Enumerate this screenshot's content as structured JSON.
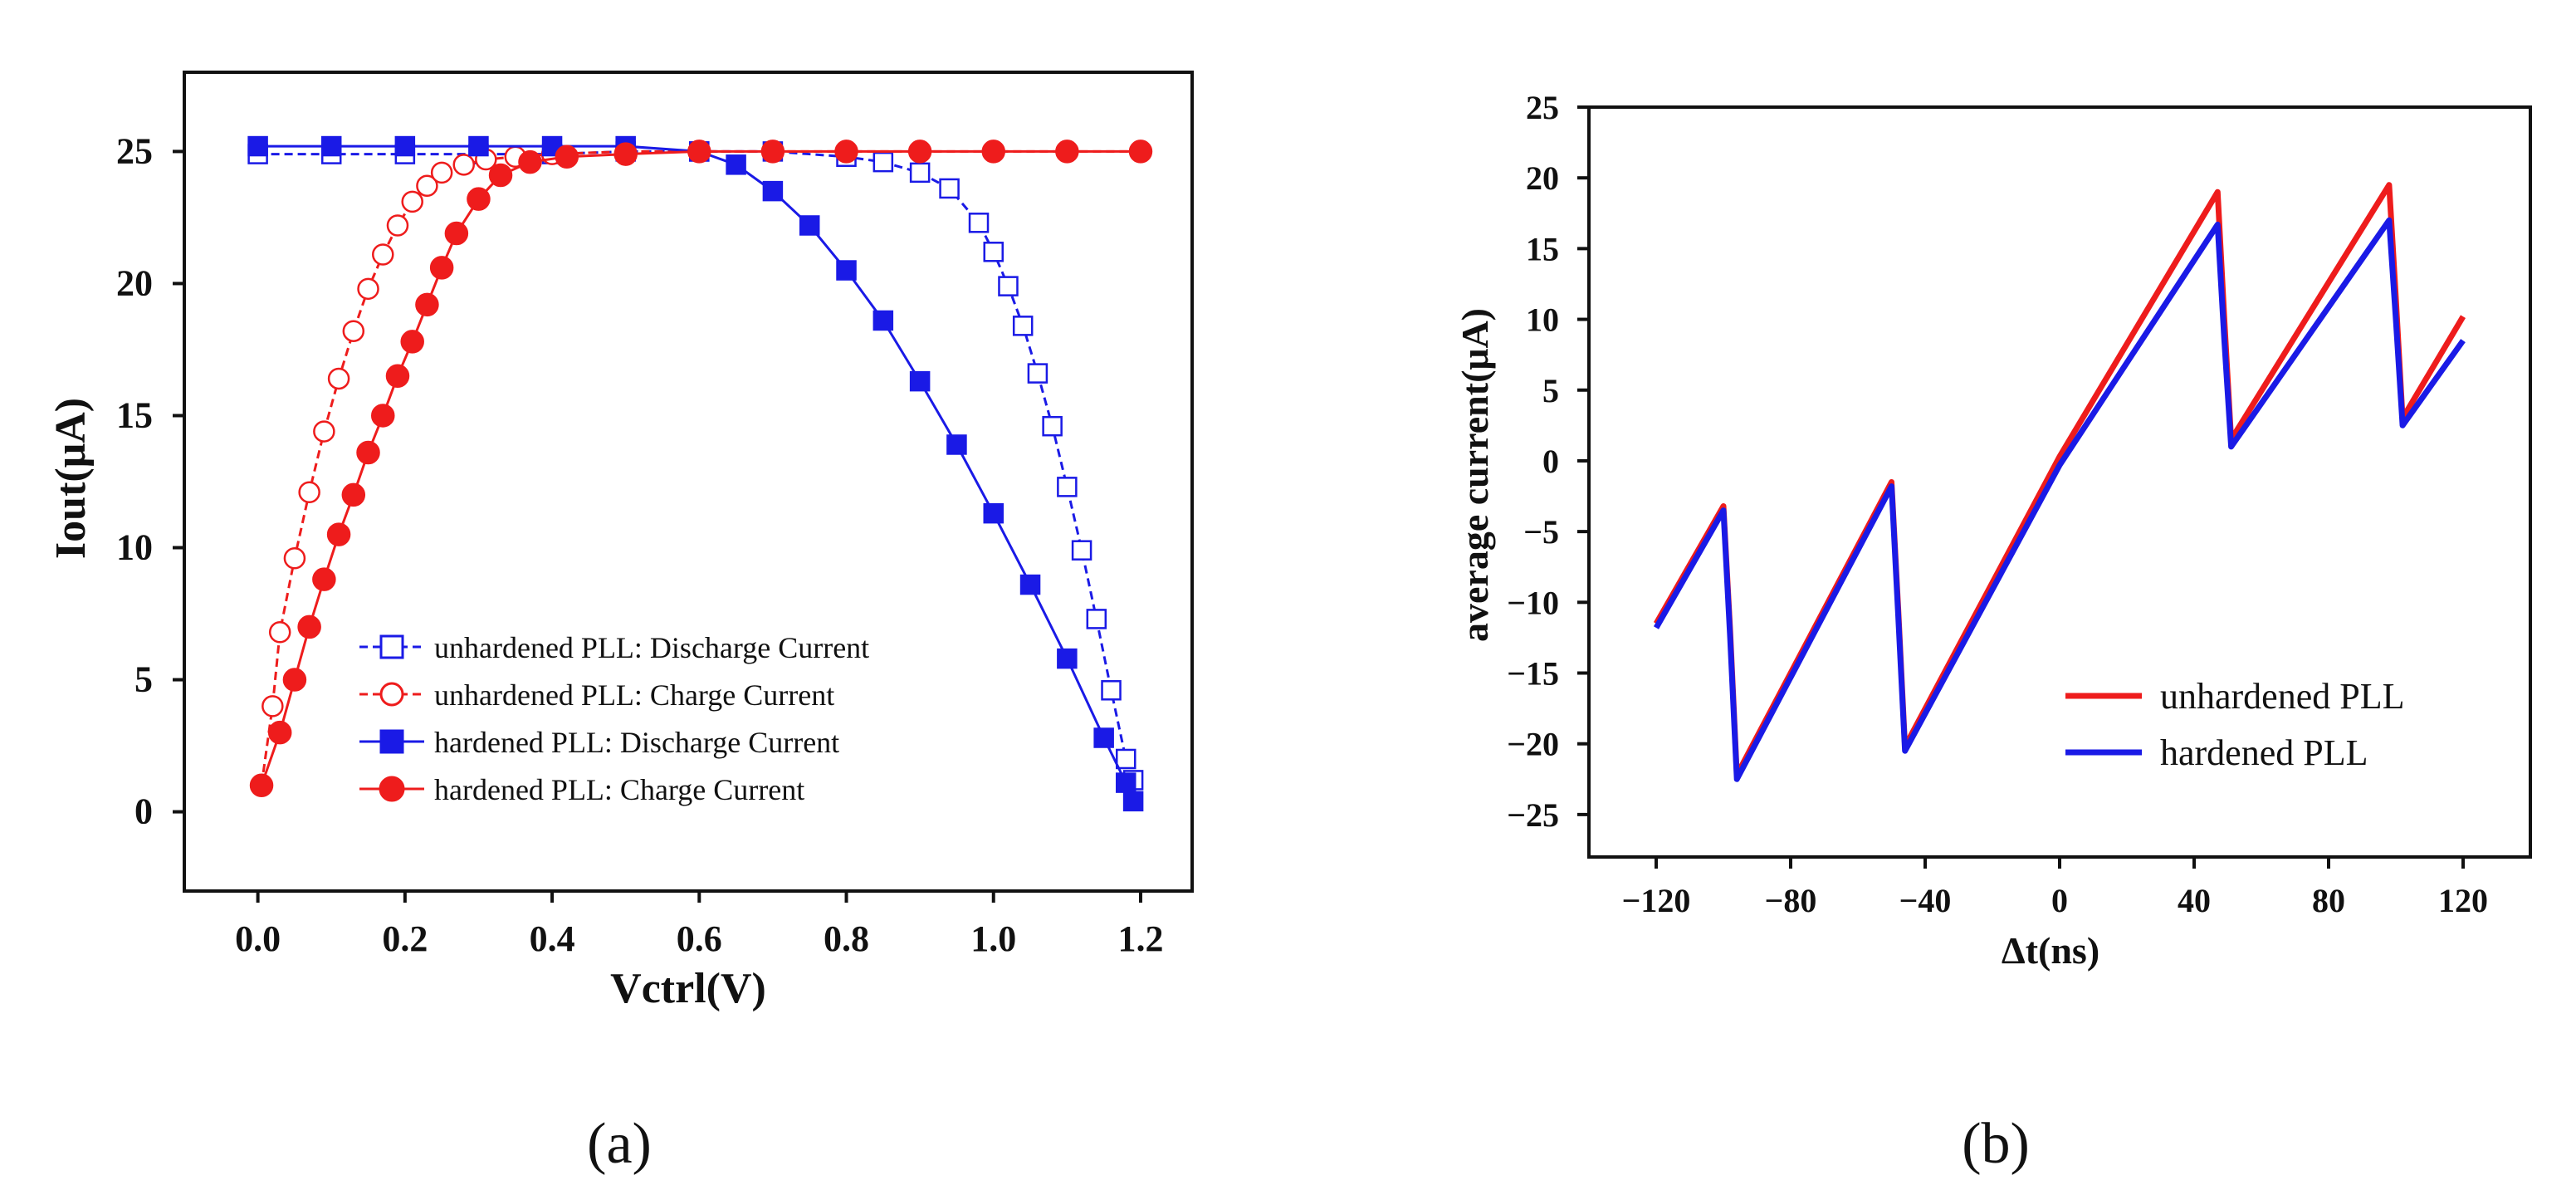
{
  "panel_labels": {
    "a": "(a)",
    "b": "(b)"
  },
  "colors": {
    "red": "#ee1c1c",
    "blue": "#1a1ae6",
    "axis": "#111111"
  },
  "chart_data": [
    {
      "id": "a",
      "type": "line",
      "title": "",
      "xlabel": "Vctrl(V)",
      "ylabel": "Iout(μA)",
      "xlim": [
        -0.1,
        1.27
      ],
      "ylim": [
        -3,
        28
      ],
      "xticks": [
        0.0,
        0.2,
        0.4,
        0.6,
        0.8,
        1.0,
        1.2
      ],
      "xtick_labels": [
        "0.0",
        "0.2",
        "0.4",
        "0.6",
        "0.8",
        "1.0",
        "1.2"
      ],
      "yticks": [
        0,
        5,
        10,
        15,
        20,
        25
      ],
      "ytick_labels": [
        "0",
        "5",
        "10",
        "15",
        "20",
        "25"
      ],
      "grid": false,
      "legend_position": "lower-center",
      "series": [
        {
          "name": "unhardened PLL: Discharge Current",
          "color": "#1a1ae6",
          "marker": "square-open",
          "x": [
            0.0,
            0.1,
            0.2,
            0.3,
            0.4,
            0.5,
            0.6,
            0.7,
            0.8,
            0.85,
            0.9,
            0.94,
            0.98,
            1.0,
            1.02,
            1.04,
            1.06,
            1.08,
            1.1,
            1.12,
            1.14,
            1.16,
            1.18,
            1.19
          ],
          "y": [
            24.9,
            24.9,
            24.9,
            24.9,
            24.9,
            25.0,
            25.0,
            25.0,
            24.8,
            24.6,
            24.2,
            23.6,
            22.3,
            21.2,
            19.9,
            18.4,
            16.6,
            14.6,
            12.3,
            9.9,
            7.3,
            4.6,
            2.0,
            1.2
          ]
        },
        {
          "name": "unhardened PLL: Charge Current",
          "color": "#ee1c1c",
          "marker": "circle-open",
          "x": [
            0.005,
            0.02,
            0.03,
            0.05,
            0.07,
            0.09,
            0.11,
            0.13,
            0.15,
            0.17,
            0.19,
            0.21,
            0.23,
            0.25,
            0.28,
            0.31,
            0.35,
            0.4,
            0.5,
            0.6,
            0.7,
            0.8,
            0.9,
            1.0,
            1.1,
            1.2
          ],
          "y": [
            1.0,
            4.0,
            6.8,
            9.6,
            12.1,
            14.4,
            16.4,
            18.2,
            19.8,
            21.1,
            22.2,
            23.1,
            23.7,
            24.2,
            24.5,
            24.7,
            24.8,
            24.9,
            25.0,
            25.0,
            25.0,
            25.0,
            25.0,
            25.0,
            25.0,
            25.0
          ]
        },
        {
          "name": "hardened PLL: Discharge Current",
          "color": "#1a1ae6",
          "marker": "square-filled",
          "x": [
            0.0,
            0.1,
            0.2,
            0.3,
            0.4,
            0.5,
            0.6,
            0.65,
            0.7,
            0.75,
            0.8,
            0.85,
            0.9,
            0.95,
            1.0,
            1.05,
            1.1,
            1.15,
            1.18,
            1.19
          ],
          "y": [
            25.2,
            25.2,
            25.2,
            25.2,
            25.2,
            25.2,
            25.0,
            24.5,
            23.5,
            22.2,
            20.5,
            18.6,
            16.3,
            13.9,
            11.3,
            8.6,
            5.8,
            2.8,
            1.1,
            0.4
          ]
        },
        {
          "name": "hardened PLL: Charge Current",
          "color": "#ee1c1c",
          "marker": "circle-filled",
          "x": [
            0.005,
            0.03,
            0.05,
            0.07,
            0.09,
            0.11,
            0.13,
            0.15,
            0.17,
            0.19,
            0.21,
            0.23,
            0.25,
            0.27,
            0.3,
            0.33,
            0.37,
            0.42,
            0.5,
            0.6,
            0.7,
            0.8,
            0.9,
            1.0,
            1.1,
            1.2
          ],
          "y": [
            1.0,
            3.0,
            5.0,
            7.0,
            8.8,
            10.5,
            12.0,
            13.6,
            15.0,
            16.5,
            17.8,
            19.2,
            20.6,
            21.9,
            23.2,
            24.1,
            24.6,
            24.8,
            24.9,
            25.0,
            25.0,
            25.0,
            25.0,
            25.0,
            25.0,
            25.0
          ]
        }
      ]
    },
    {
      "id": "b",
      "type": "line",
      "title": "",
      "xlabel": "Δt(ns)",
      "ylabel": "average current(μA)",
      "xlim": [
        -140,
        140
      ],
      "ylim": [
        -28,
        25
      ],
      "xticks": [
        -120,
        -80,
        -40,
        0,
        40,
        80,
        120
      ],
      "xtick_labels": [
        "−120",
        "−80",
        "−40",
        "0",
        "40",
        "80",
        "120"
      ],
      "yticks": [
        25,
        20,
        15,
        10,
        5,
        0,
        -5,
        -10,
        -15,
        -20,
        -25
      ],
      "ytick_labels": [
        "25",
        "20",
        "15",
        "10",
        "5",
        "0",
        "−5",
        "−10",
        "−15",
        "−20",
        "−25"
      ],
      "grid": false,
      "legend_position": "lower-right",
      "series": [
        {
          "name": "unhardened PLL",
          "color": "#ee1c1c",
          "x": [
            -120,
            -100,
            -98,
            -96,
            -50,
            -48,
            -46,
            0,
            47,
            49,
            51,
            98,
            100,
            102,
            120
          ],
          "y": [
            -11.5,
            -3.2,
            -12.0,
            -22.2,
            -1.5,
            -10.5,
            -20.2,
            0.3,
            19.0,
            10.0,
            1.5,
            19.5,
            11.5,
            3.0,
            10.2
          ]
        },
        {
          "name": "hardened PLL",
          "color": "#1a1ae6",
          "x": [
            -120,
            -100,
            -98,
            -96,
            -50,
            -48,
            -46,
            0,
            47,
            49,
            51,
            98,
            100,
            102,
            120
          ],
          "y": [
            -11.8,
            -3.5,
            -12.5,
            -22.5,
            -1.8,
            -11.0,
            -20.5,
            -0.3,
            16.7,
            8.5,
            1.0,
            17.0,
            10.0,
            2.5,
            8.5
          ]
        }
      ]
    }
  ]
}
